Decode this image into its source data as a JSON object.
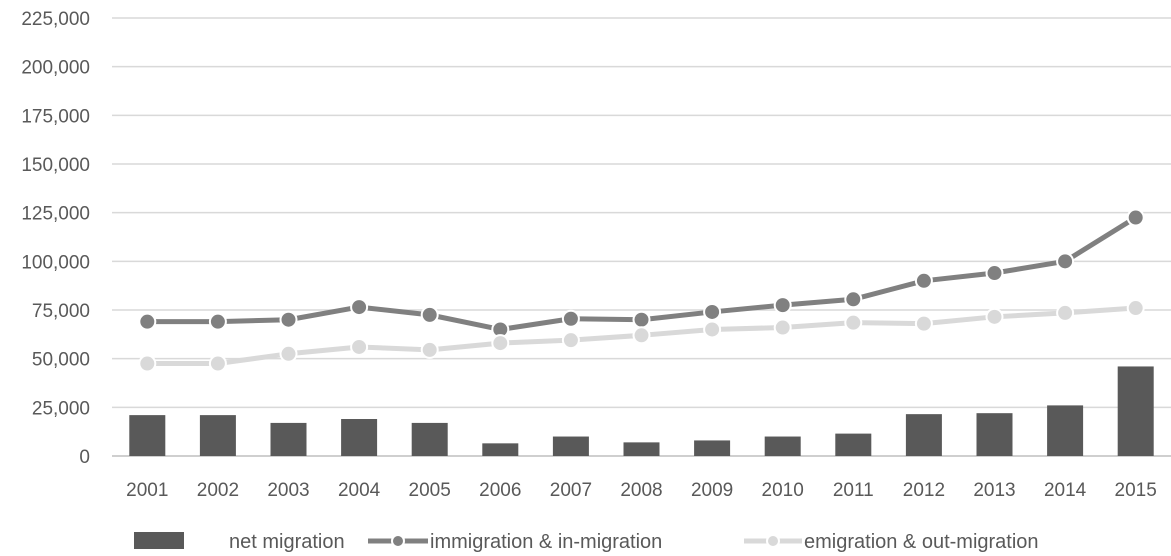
{
  "chart_data": {
    "type": "bar",
    "categories": [
      "2001",
      "2002",
      "2003",
      "2004",
      "2005",
      "2006",
      "2007",
      "2008",
      "2009",
      "2010",
      "2011",
      "2012",
      "2013",
      "2014",
      "2015"
    ],
    "series": [
      {
        "name": "net migration",
        "kind": "bar",
        "color": "#595959",
        "values": [
          21000,
          21000,
          17000,
          19000,
          17000,
          6500,
          10000,
          7000,
          8000,
          10000,
          11500,
          21500,
          22000,
          26000,
          46000
        ]
      },
      {
        "name": "immigration & in-migration",
        "kind": "line",
        "color": "#808080",
        "values": [
          69000,
          69000,
          70000,
          76500,
          72500,
          65000,
          70500,
          70000,
          74000,
          77500,
          80500,
          90000,
          94000,
          100000,
          122500
        ]
      },
      {
        "name": "emigration & out-migration",
        "kind": "line",
        "color": "#d9d9d9",
        "values": [
          47500,
          47500,
          52500,
          56000,
          54500,
          58000,
          59500,
          62000,
          65000,
          66000,
          68500,
          68000,
          71500,
          73500,
          76000
        ]
      }
    ],
    "ylim": [
      0,
      225000
    ],
    "yticks": [
      "0",
      "25,000",
      "50,000",
      "75,000",
      "100,000",
      "125,000",
      "150,000",
      "175,000",
      "200,000",
      "225,000"
    ],
    "grid": true,
    "legend_position": "bottom"
  }
}
